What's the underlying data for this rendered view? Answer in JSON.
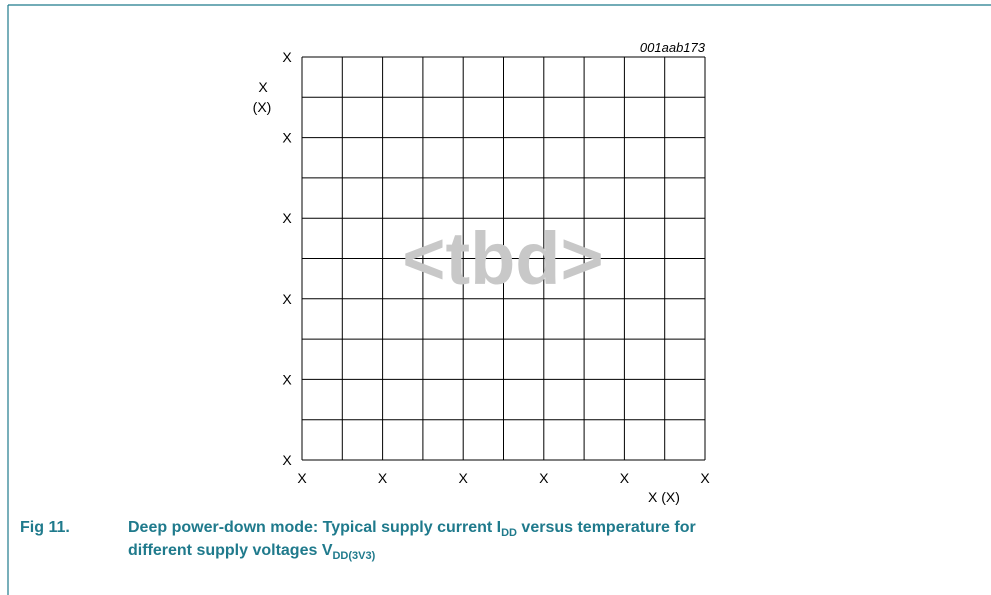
{
  "figure": {
    "id": "001aab173",
    "placeholder": "<tbd>",
    "y_axis_label": [
      "X",
      "(X)"
    ],
    "y_ticks": [
      "X",
      "X",
      "X",
      "X",
      "X",
      "X"
    ],
    "x_ticks": [
      "X",
      "X",
      "X",
      "X",
      "X",
      "X"
    ],
    "x_axis_label": "X (X)",
    "caption": {
      "number": "Fig 11.",
      "line1": [
        "Deep power-down mode: Typical supply current I",
        "DD",
        " versus temperature for"
      ],
      "line2": [
        "different supply voltages V",
        "DD(3V3)"
      ]
    }
  }
}
